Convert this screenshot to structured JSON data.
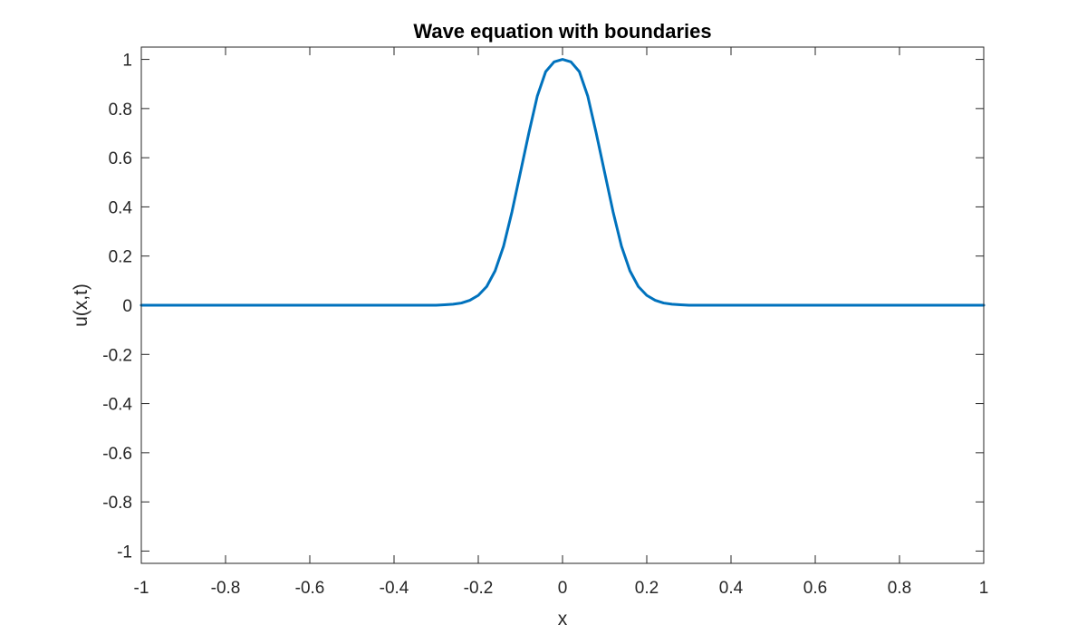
{
  "chart_data": {
    "type": "line",
    "title": "Wave equation with boundaries",
    "xlabel": "x",
    "ylabel": "u(x,t)",
    "xlim": [
      -1,
      1
    ],
    "ylim": [
      -1.05,
      1.05
    ],
    "xticks": [
      -1,
      -0.8,
      -0.6,
      -0.4,
      -0.2,
      0,
      0.2,
      0.4,
      0.6,
      0.8,
      1
    ],
    "yticks": [
      -1,
      -0.8,
      -0.6,
      -0.4,
      -0.2,
      0,
      0.2,
      0.4,
      0.6,
      0.8,
      1
    ],
    "xtick_labels": [
      "-1",
      "-0.8",
      "-0.6",
      "-0.4",
      "-0.2",
      "0",
      "0.2",
      "0.4",
      "0.6",
      "0.8",
      "1"
    ],
    "ytick_labels": [
      "-1",
      "-0.8",
      "-0.6",
      "-0.4",
      "-0.2",
      "0",
      "0.2",
      "0.4",
      "0.6",
      "0.8",
      "1"
    ],
    "grid": false,
    "box": true,
    "series": [
      {
        "color": "#0072BD",
        "x": [
          -1.0,
          -0.3,
          -0.28,
          -0.26,
          -0.24,
          -0.22,
          -0.2,
          -0.18,
          -0.16,
          -0.14,
          -0.12,
          -0.1,
          -0.08,
          -0.06,
          -0.04,
          -0.02,
          0.0,
          0.02,
          0.04,
          0.06,
          0.08,
          0.1,
          0.12,
          0.14,
          0.16,
          0.18,
          0.2,
          0.22,
          0.24,
          0.26,
          0.28,
          0.3,
          1.0
        ],
        "y": [
          0,
          0.0,
          0.002,
          0.004,
          0.009,
          0.02,
          0.04,
          0.076,
          0.14,
          0.24,
          0.38,
          0.54,
          0.7,
          0.85,
          0.95,
          0.99,
          1.0,
          0.99,
          0.95,
          0.85,
          0.7,
          0.54,
          0.38,
          0.24,
          0.14,
          0.076,
          0.04,
          0.02,
          0.009,
          0.004,
          0.002,
          0.0,
          0
        ]
      }
    ]
  }
}
